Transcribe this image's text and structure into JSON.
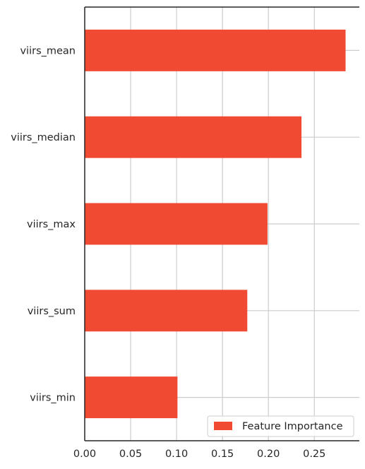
{
  "chart_data": {
    "type": "bar",
    "orientation": "horizontal",
    "title": "",
    "xlabel": "",
    "ylabel": "",
    "categories": [
      "viirs_mean",
      "viirs_median",
      "viirs_max",
      "viirs_sum",
      "viirs_min"
    ],
    "series": [
      {
        "name": "Feature Importance",
        "values": [
          0.284,
          0.236,
          0.199,
          0.177,
          0.101
        ]
      }
    ],
    "x_ticks": [
      "0.00",
      "0.05",
      "0.10",
      "0.15",
      "0.20",
      "0.25"
    ],
    "xlim": [
      0,
      0.299
    ],
    "grid": true,
    "legend_position": "lower-right",
    "colors": {
      "bar": "#f04a32",
      "grid": "#cccccc",
      "axis": "#262626"
    }
  }
}
